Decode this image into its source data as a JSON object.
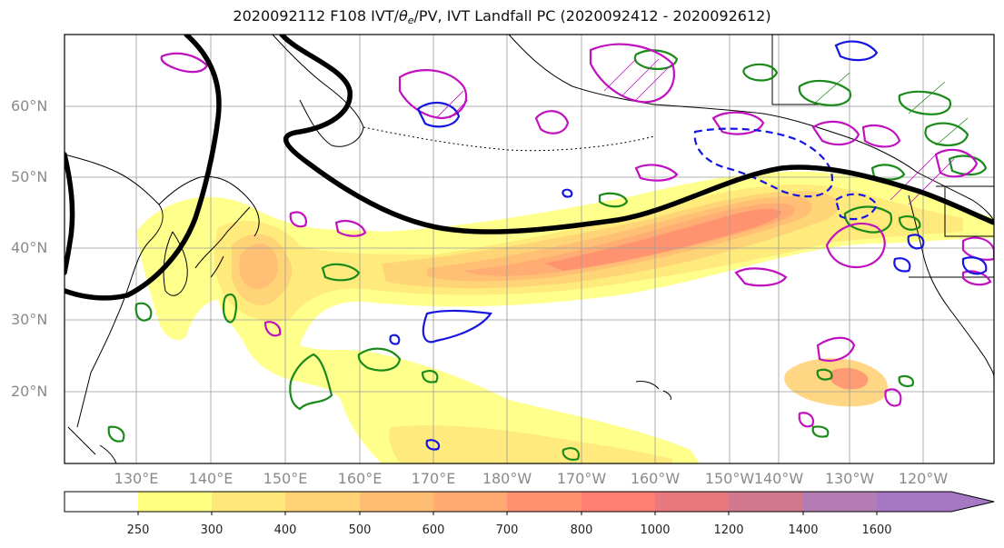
{
  "title": {
    "prefix": "2020092112 F108 IVT/",
    "theta": "θ",
    "theta_sub": "e",
    "suffix": "/PV, IVT Landfall PC (2020092412 - 2020092612)"
  },
  "map": {
    "lat_labels": [
      "60°N",
      "50°N",
      "40°N",
      "30°N",
      "20°N"
    ],
    "lon_labels": [
      "130°E",
      "140°E",
      "150°E",
      "160°E",
      "170°E",
      "180°W",
      "170°W",
      "160°W",
      "150°W",
      "140°W",
      "130°W",
      "120°W"
    ],
    "contour_colors": {
      "jet": "#000000",
      "theta_e": "#1a8a1a",
      "pv_positive": "#c010c0",
      "pv_negative": "#1515e0"
    }
  },
  "colorbar": {
    "tick_labels": [
      "250",
      "300",
      "400",
      "500",
      "600",
      "700",
      "800",
      "1000",
      "1200",
      "1400",
      "1600"
    ],
    "colors": [
      "#ffffff",
      "#ffff80",
      "#ffe87a",
      "#ffd276",
      "#ffbd74",
      "#ffab72",
      "#ff9070",
      "#ff7f70",
      "#e8787e",
      "#d2788e",
      "#b47bb4",
      "#a678c4"
    ]
  }
}
